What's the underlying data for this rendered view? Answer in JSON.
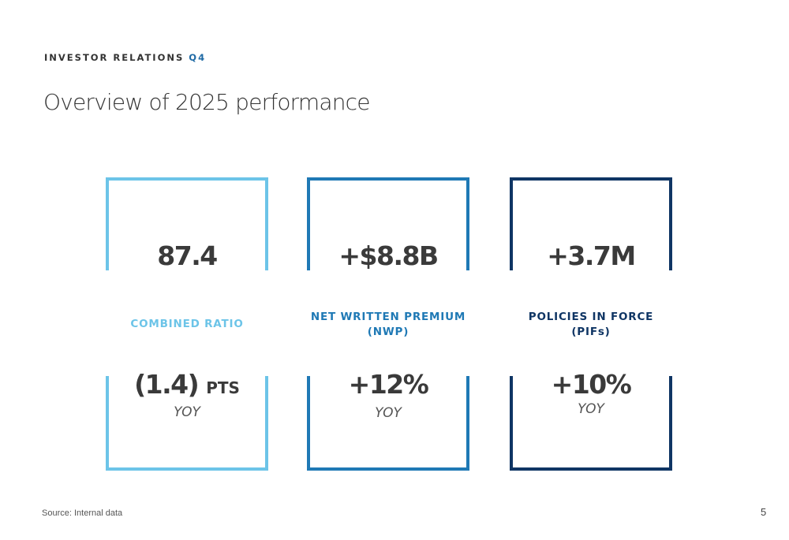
{
  "header": {
    "kicker": "INVESTOR RELATIONS",
    "quarter": "Q4",
    "title": "Overview of 2025 performance"
  },
  "cards": [
    {
      "metric": "87.4",
      "label_line1": "COMBINED RATIO",
      "label_line2": "",
      "change": "(1.4)",
      "change_unit": "PTS",
      "period": "YOY",
      "color": "#6cc4e8"
    },
    {
      "metric": "+$8.8B",
      "label_line1": "NET WRITTEN PREMIUM",
      "label_line2": "(NWP)",
      "change": "+12%",
      "change_unit": "",
      "period": "YOY",
      "color": "#1f79b5"
    },
    {
      "metric": "+3.7M",
      "label_line1": "POLICIES IN FORCE",
      "label_line2": "(PIFs)",
      "change": "+10%",
      "change_unit": "",
      "period": "YOY",
      "color": "#0f3564"
    }
  ],
  "footer": {
    "source": "Source: Internal data",
    "page_number": "5"
  }
}
